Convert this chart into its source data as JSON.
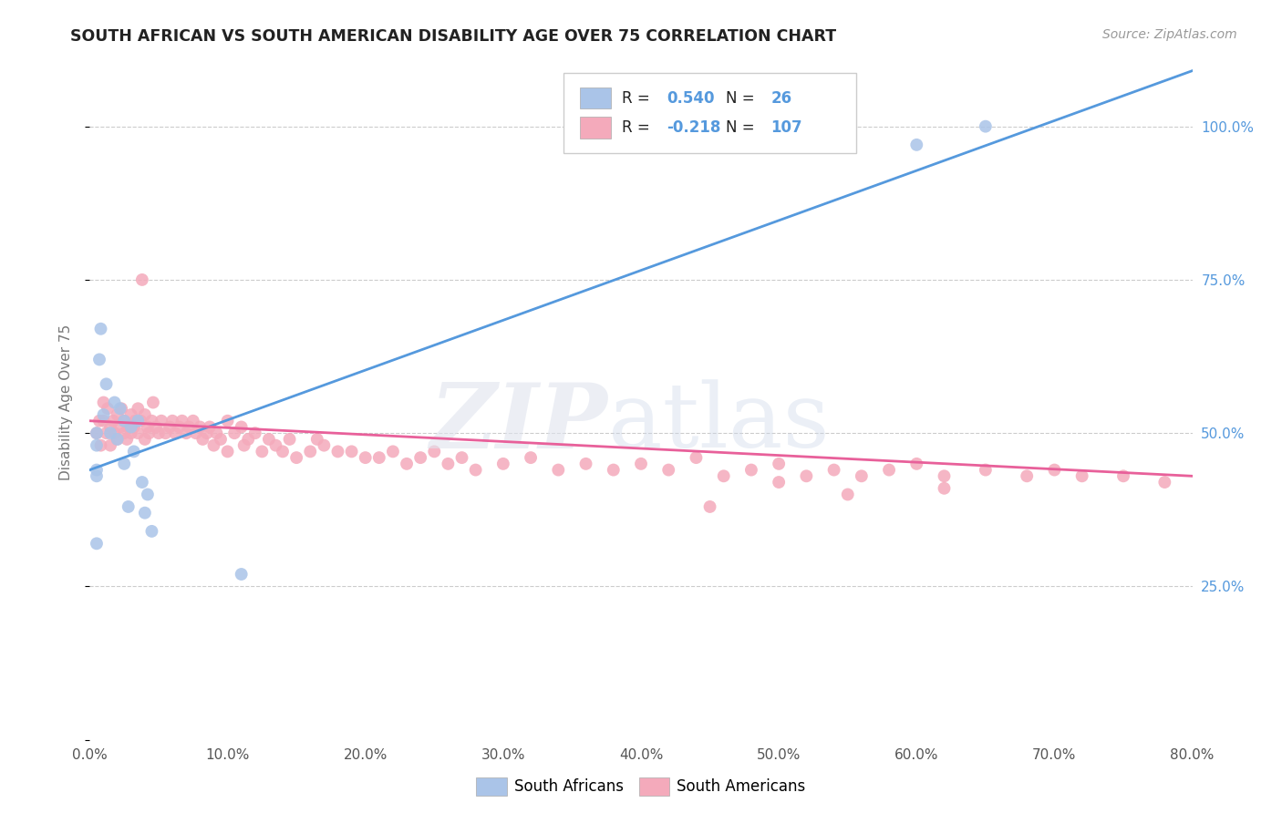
{
  "title": "SOUTH AFRICAN VS SOUTH AMERICAN DISABILITY AGE OVER 75 CORRELATION CHART",
  "source": "Source: ZipAtlas.com",
  "ylabel": "Disability Age Over 75",
  "background_color": "#ffffff",
  "south_african_color": "#aac4e8",
  "south_american_color": "#f4aabb",
  "south_african_line_color": "#5599dd",
  "south_american_line_color": "#e8609a",
  "xmin": 0.0,
  "xmax": 0.8,
  "ymin": 0.0,
  "ymax": 1.1,
  "r_sa": 0.54,
  "n_sa": 26,
  "r_sam": -0.218,
  "n_sam": 107,
  "south_african_x": [
    0.005,
    0.005,
    0.005,
    0.005,
    0.005,
    0.007,
    0.008,
    0.01,
    0.012,
    0.015,
    0.018,
    0.02,
    0.022,
    0.025,
    0.025,
    0.028,
    0.03,
    0.032,
    0.035,
    0.038,
    0.04,
    0.042,
    0.045,
    0.11,
    0.6,
    0.65
  ],
  "south_african_y": [
    0.43,
    0.48,
    0.5,
    0.44,
    0.32,
    0.62,
    0.67,
    0.53,
    0.58,
    0.5,
    0.55,
    0.49,
    0.54,
    0.52,
    0.45,
    0.38,
    0.51,
    0.47,
    0.52,
    0.42,
    0.37,
    0.4,
    0.34,
    0.27,
    0.97,
    1.0
  ],
  "south_american_x": [
    0.005,
    0.007,
    0.008,
    0.01,
    0.01,
    0.012,
    0.013,
    0.015,
    0.015,
    0.017,
    0.018,
    0.02,
    0.02,
    0.022,
    0.023,
    0.025,
    0.025,
    0.027,
    0.028,
    0.03,
    0.03,
    0.032,
    0.033,
    0.035,
    0.035,
    0.037,
    0.038,
    0.04,
    0.04,
    0.042,
    0.043,
    0.045,
    0.046,
    0.048,
    0.05,
    0.052,
    0.055,
    0.058,
    0.06,
    0.062,
    0.065,
    0.067,
    0.07,
    0.072,
    0.075,
    0.077,
    0.08,
    0.082,
    0.085,
    0.087,
    0.09,
    0.092,
    0.095,
    0.1,
    0.1,
    0.105,
    0.11,
    0.112,
    0.115,
    0.12,
    0.125,
    0.13,
    0.135,
    0.14,
    0.145,
    0.15,
    0.16,
    0.165,
    0.17,
    0.18,
    0.19,
    0.2,
    0.21,
    0.22,
    0.23,
    0.24,
    0.25,
    0.26,
    0.27,
    0.28,
    0.3,
    0.32,
    0.34,
    0.36,
    0.38,
    0.4,
    0.42,
    0.44,
    0.46,
    0.48,
    0.5,
    0.52,
    0.54,
    0.56,
    0.58,
    0.6,
    0.62,
    0.65,
    0.68,
    0.7,
    0.72,
    0.75,
    0.78,
    0.5,
    0.55,
    0.62,
    0.45
  ],
  "south_american_y": [
    0.5,
    0.52,
    0.48,
    0.52,
    0.55,
    0.5,
    0.54,
    0.51,
    0.48,
    0.52,
    0.5,
    0.53,
    0.49,
    0.51,
    0.54,
    0.5,
    0.52,
    0.49,
    0.51,
    0.5,
    0.53,
    0.51,
    0.52,
    0.5,
    0.54,
    0.52,
    0.75,
    0.49,
    0.53,
    0.51,
    0.5,
    0.52,
    0.55,
    0.51,
    0.5,
    0.52,
    0.5,
    0.51,
    0.52,
    0.5,
    0.51,
    0.52,
    0.5,
    0.51,
    0.52,
    0.5,
    0.51,
    0.49,
    0.5,
    0.51,
    0.48,
    0.5,
    0.49,
    0.52,
    0.47,
    0.5,
    0.51,
    0.48,
    0.49,
    0.5,
    0.47,
    0.49,
    0.48,
    0.47,
    0.49,
    0.46,
    0.47,
    0.49,
    0.48,
    0.47,
    0.47,
    0.46,
    0.46,
    0.47,
    0.45,
    0.46,
    0.47,
    0.45,
    0.46,
    0.44,
    0.45,
    0.46,
    0.44,
    0.45,
    0.44,
    0.45,
    0.44,
    0.46,
    0.43,
    0.44,
    0.45,
    0.43,
    0.44,
    0.43,
    0.44,
    0.45,
    0.43,
    0.44,
    0.43,
    0.44,
    0.43,
    0.43,
    0.42,
    0.42,
    0.4,
    0.41,
    0.38
  ]
}
